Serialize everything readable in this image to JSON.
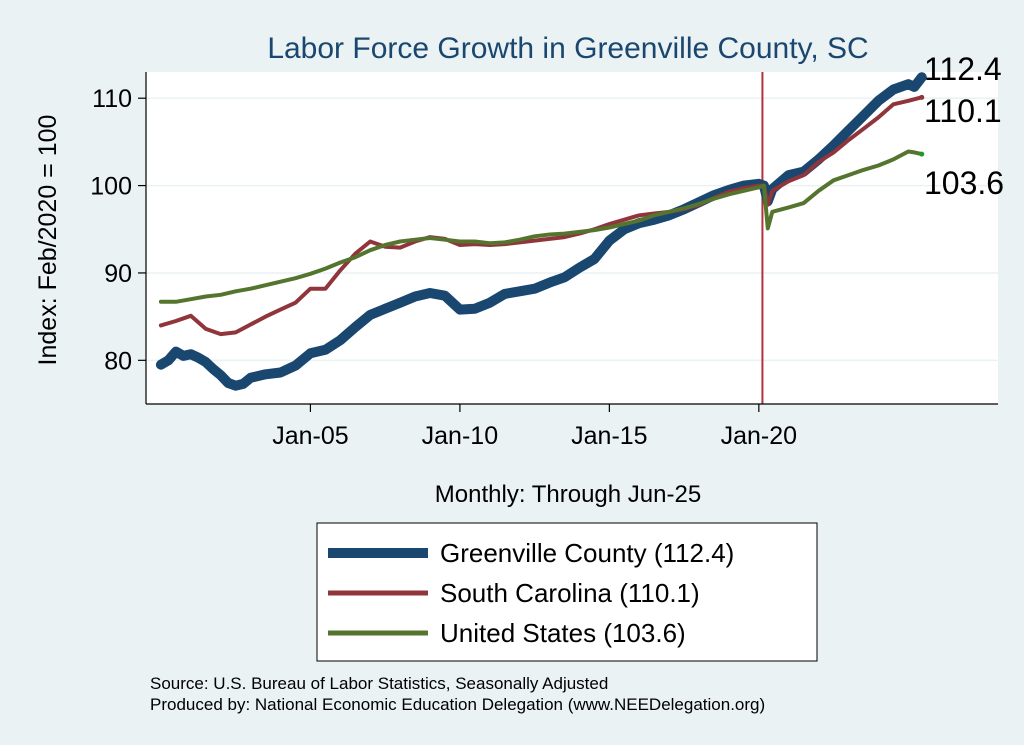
{
  "chart_data": {
    "type": "line",
    "title": "Labor Force Growth in Greenville  County, SC",
    "xlabel": "Monthly: Through Jun-25",
    "ylabel": "Index: Feb/2020 = 100",
    "xlim": [
      1999.5,
      2028.0
    ],
    "ylim": [
      75.0,
      113.0
    ],
    "x_ticks": [
      {
        "value": 2005.0,
        "label": "Jan-05"
      },
      {
        "value": 2010.0,
        "label": "Jan-10"
      },
      {
        "value": 2015.0,
        "label": "Jan-15"
      },
      {
        "value": 2020.0,
        "label": "Jan-20"
      }
    ],
    "y_ticks": [
      80,
      90,
      100,
      110
    ],
    "reference_line": {
      "x": 2020.12,
      "color": "#b5313f"
    },
    "series": [
      {
        "name": "Greenville  County",
        "legend_label": "Greenville  County (112.4)",
        "end_label": "112.4",
        "end_value": 112.4,
        "color": "#1a476f",
        "width": 10,
        "points": [
          [
            2000.0,
            79.5
          ],
          [
            2000.25,
            80.0
          ],
          [
            2000.5,
            81.0
          ],
          [
            2000.75,
            80.5
          ],
          [
            2001.0,
            80.7
          ],
          [
            2001.25,
            80.3
          ],
          [
            2001.5,
            79.8
          ],
          [
            2001.75,
            79.0
          ],
          [
            2002.0,
            78.3
          ],
          [
            2002.25,
            77.4
          ],
          [
            2002.5,
            77.1
          ],
          [
            2002.75,
            77.3
          ],
          [
            2003.0,
            78.0
          ],
          [
            2003.5,
            78.4
          ],
          [
            2004.0,
            78.6
          ],
          [
            2004.5,
            79.4
          ],
          [
            2005.0,
            80.8
          ],
          [
            2005.5,
            81.2
          ],
          [
            2006.0,
            82.3
          ],
          [
            2006.5,
            83.8
          ],
          [
            2007.0,
            85.2
          ],
          [
            2007.5,
            85.9
          ],
          [
            2008.0,
            86.6
          ],
          [
            2008.5,
            87.3
          ],
          [
            2009.0,
            87.7
          ],
          [
            2009.5,
            87.4
          ],
          [
            2010.0,
            85.8
          ],
          [
            2010.5,
            85.9
          ],
          [
            2011.0,
            86.6
          ],
          [
            2011.5,
            87.6
          ],
          [
            2012.0,
            87.9
          ],
          [
            2012.5,
            88.2
          ],
          [
            2013.0,
            88.9
          ],
          [
            2013.5,
            89.5
          ],
          [
            2014.0,
            90.6
          ],
          [
            2014.5,
            91.6
          ],
          [
            2015.0,
            93.7
          ],
          [
            2015.5,
            95.0
          ],
          [
            2016.0,
            95.7
          ],
          [
            2016.5,
            96.1
          ],
          [
            2017.0,
            96.6
          ],
          [
            2017.5,
            97.3
          ],
          [
            2018.0,
            98.1
          ],
          [
            2018.5,
            98.9
          ],
          [
            2019.0,
            99.5
          ],
          [
            2019.5,
            100.0
          ],
          [
            2020.0,
            100.2
          ],
          [
            2020.17,
            100.0
          ],
          [
            2020.3,
            98.2
          ],
          [
            2020.45,
            99.6
          ],
          [
            2021.0,
            101.2
          ],
          [
            2021.5,
            101.6
          ],
          [
            2022.0,
            103.0
          ],
          [
            2022.5,
            104.6
          ],
          [
            2023.0,
            106.3
          ],
          [
            2023.5,
            108.0
          ],
          [
            2024.0,
            109.7
          ],
          [
            2024.5,
            111.0
          ],
          [
            2025.0,
            111.6
          ],
          [
            2025.2,
            111.3
          ],
          [
            2025.45,
            112.4
          ]
        ]
      },
      {
        "name": "South Carolina",
        "legend_label": "South Carolina (110.1)",
        "end_label": "110.1",
        "end_value": 110.1,
        "color": "#90353b",
        "width": 4,
        "points": [
          [
            2000.0,
            84.0
          ],
          [
            2000.5,
            84.5
          ],
          [
            2001.0,
            85.1
          ],
          [
            2001.5,
            83.6
          ],
          [
            2002.0,
            83.0
          ],
          [
            2002.5,
            83.2
          ],
          [
            2003.0,
            84.1
          ],
          [
            2003.5,
            85.0
          ],
          [
            2004.0,
            85.8
          ],
          [
            2004.5,
            86.6
          ],
          [
            2005.0,
            88.2
          ],
          [
            2005.5,
            88.2
          ],
          [
            2006.0,
            90.3
          ],
          [
            2006.5,
            92.2
          ],
          [
            2007.0,
            93.6
          ],
          [
            2007.5,
            93.0
          ],
          [
            2008.0,
            92.9
          ],
          [
            2008.5,
            93.6
          ],
          [
            2009.0,
            94.1
          ],
          [
            2009.5,
            93.9
          ],
          [
            2010.0,
            93.2
          ],
          [
            2010.5,
            93.3
          ],
          [
            2011.0,
            93.2
          ],
          [
            2011.5,
            93.3
          ],
          [
            2012.0,
            93.5
          ],
          [
            2012.5,
            93.7
          ],
          [
            2013.0,
            93.9
          ],
          [
            2013.5,
            94.1
          ],
          [
            2014.0,
            94.5
          ],
          [
            2014.5,
            95.0
          ],
          [
            2015.0,
            95.6
          ],
          [
            2015.5,
            96.1
          ],
          [
            2016.0,
            96.6
          ],
          [
            2016.5,
            96.8
          ],
          [
            2017.0,
            97.0
          ],
          [
            2017.5,
            97.3
          ],
          [
            2018.0,
            97.8
          ],
          [
            2018.5,
            98.6
          ],
          [
            2019.0,
            99.3
          ],
          [
            2019.5,
            99.7
          ],
          [
            2020.0,
            100.0
          ],
          [
            2020.17,
            100.0
          ],
          [
            2020.3,
            97.8
          ],
          [
            2020.45,
            99.4
          ],
          [
            2021.0,
            100.5
          ],
          [
            2021.5,
            101.2
          ],
          [
            2022.0,
            102.7
          ],
          [
            2022.5,
            103.8
          ],
          [
            2023.0,
            105.2
          ],
          [
            2023.5,
            106.5
          ],
          [
            2024.0,
            107.8
          ],
          [
            2024.5,
            109.3
          ],
          [
            2025.0,
            109.7
          ],
          [
            2025.45,
            110.1
          ]
        ]
      },
      {
        "name": "United States",
        "legend_label": "United States (103.6)",
        "end_label": "103.6",
        "end_value": 103.6,
        "color": "#55752f",
        "width": 4,
        "points": [
          [
            2000.0,
            86.7
          ],
          [
            2000.5,
            86.7
          ],
          [
            2001.0,
            87.0
          ],
          [
            2001.5,
            87.3
          ],
          [
            2002.0,
            87.5
          ],
          [
            2002.5,
            87.9
          ],
          [
            2003.0,
            88.2
          ],
          [
            2003.5,
            88.6
          ],
          [
            2004.0,
            89.0
          ],
          [
            2004.5,
            89.4
          ],
          [
            2005.0,
            89.9
          ],
          [
            2005.5,
            90.5
          ],
          [
            2006.0,
            91.2
          ],
          [
            2006.5,
            91.8
          ],
          [
            2007.0,
            92.6
          ],
          [
            2007.5,
            93.2
          ],
          [
            2008.0,
            93.6
          ],
          [
            2008.5,
            93.8
          ],
          [
            2009.0,
            94.0
          ],
          [
            2009.5,
            93.8
          ],
          [
            2010.0,
            93.6
          ],
          [
            2010.5,
            93.6
          ],
          [
            2011.0,
            93.4
          ],
          [
            2011.5,
            93.5
          ],
          [
            2012.0,
            93.8
          ],
          [
            2012.5,
            94.2
          ],
          [
            2013.0,
            94.4
          ],
          [
            2013.5,
            94.5
          ],
          [
            2014.0,
            94.7
          ],
          [
            2014.5,
            94.9
          ],
          [
            2015.0,
            95.2
          ],
          [
            2015.5,
            95.6
          ],
          [
            2016.0,
            96.0
          ],
          [
            2016.5,
            96.6
          ],
          [
            2017.0,
            97.0
          ],
          [
            2017.5,
            97.4
          ],
          [
            2018.0,
            97.9
          ],
          [
            2018.5,
            98.5
          ],
          [
            2019.0,
            99.0
          ],
          [
            2019.5,
            99.4
          ],
          [
            2020.0,
            99.8
          ],
          [
            2020.17,
            100.0
          ],
          [
            2020.3,
            95.1
          ],
          [
            2020.45,
            97.0
          ],
          [
            2021.0,
            97.5
          ],
          [
            2021.5,
            98.0
          ],
          [
            2022.0,
            99.4
          ],
          [
            2022.5,
            100.6
          ],
          [
            2023.0,
            101.2
          ],
          [
            2023.5,
            101.8
          ],
          [
            2024.0,
            102.3
          ],
          [
            2024.5,
            103.0
          ],
          [
            2025.0,
            103.9
          ],
          [
            2025.2,
            103.8
          ],
          [
            2025.45,
            103.6
          ]
        ]
      }
    ]
  },
  "source_line": "Source: U.S. Bureau of Labor Statistics, Seasonally Adjusted",
  "produced_line": "Produced by: National Economic Education Delegation (www.NEEDelegation.org)",
  "colors": {
    "background": "#eaf2f3",
    "plot_background": "#ffffff",
    "title": "#1a476f",
    "gridline": "#eaf2f3"
  }
}
